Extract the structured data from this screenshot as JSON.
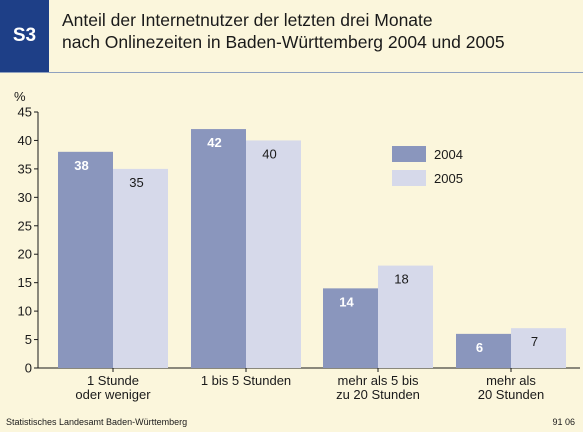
{
  "header": {
    "badge": "S3",
    "title_line1": "Anteil der Internetnutzer der letzten drei Monate",
    "title_line2": "nach Onlinezeiten in Baden-Württemberg 2004 und 2005"
  },
  "footer": {
    "source": "Statistisches Landesamt Baden-Württemberg",
    "code": "91 06"
  },
  "colors": {
    "series_2004": "#8a96bd",
    "series_2005": "#d6d9ea",
    "badge": "#1e3f87",
    "background": "#fbf6dc"
  },
  "chart_data": {
    "type": "bar",
    "ylabel": "%",
    "ylim": [
      0,
      45
    ],
    "yticks": [
      0,
      5,
      10,
      15,
      20,
      25,
      30,
      35,
      40,
      45
    ],
    "grid": false,
    "legend_position": "top-right",
    "categories": [
      [
        "1 Stunde",
        "oder weniger"
      ],
      [
        "1 bis 5 Stunden"
      ],
      [
        "mehr als 5 bis",
        "zu 20 Stunden"
      ],
      [
        "mehr als",
        "20 Stunden"
      ]
    ],
    "series": [
      {
        "name": "2004",
        "values": [
          38,
          42,
          14,
          6
        ]
      },
      {
        "name": "2005",
        "values": [
          35,
          40,
          18,
          7
        ]
      }
    ]
  }
}
